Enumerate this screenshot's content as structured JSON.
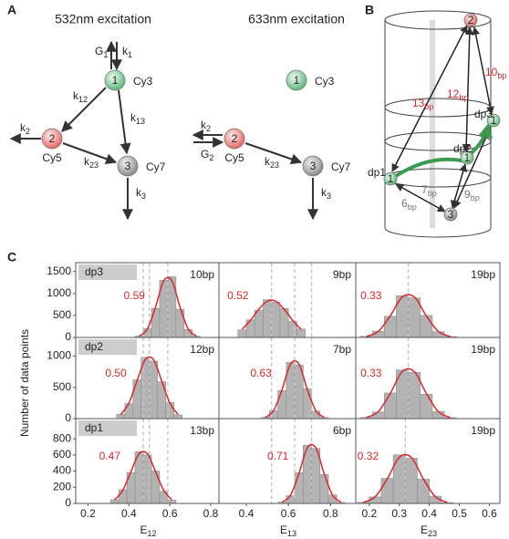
{
  "panel_a": {
    "label": "A",
    "left_title": "532nm excitation",
    "right_title": "633nm excitation",
    "left_nodes": [
      {
        "num": "1",
        "name": "Cy3"
      },
      {
        "num": "2",
        "name": "Cy5"
      },
      {
        "num": "3",
        "name": "Cy7"
      }
    ],
    "right_nodes": [
      {
        "num": "1",
        "name": "Cy3"
      },
      {
        "num": "2",
        "name": "Cy5"
      },
      {
        "num": "3",
        "name": "Cy7"
      }
    ],
    "left_rates": [
      {
        "base": "G",
        "sub": "1"
      },
      {
        "base": "k",
        "sub": "1"
      },
      {
        "base": "k",
        "sub": "12"
      },
      {
        "base": "k",
        "sub": "13"
      },
      {
        "base": "k",
        "sub": "2"
      },
      {
        "base": "k",
        "sub": "23"
      },
      {
        "base": "k",
        "sub": "3"
      }
    ],
    "right_rates": [
      {
        "base": "k",
        "sub": "2"
      },
      {
        "base": "G",
        "sub": "2"
      },
      {
        "base": "k",
        "sub": "23"
      },
      {
        "base": "k",
        "sub": "3"
      }
    ]
  },
  "panel_b": {
    "label": "B",
    "nodes": [
      "2",
      "1",
      "1",
      "1",
      "3"
    ],
    "positions": [
      "dp3",
      "dp2",
      "dp1"
    ],
    "distances": [
      {
        "base": "13",
        "sub": "bp"
      },
      {
        "base": "12",
        "sub": "bp"
      },
      {
        "base": "10",
        "sub": "bp"
      },
      {
        "base": "9",
        "sub": "bp"
      },
      {
        "base": "7",
        "sub": "bp"
      },
      {
        "base": "6",
        "sub": "bp"
      }
    ]
  },
  "panel_c": {
    "label": "C",
    "ylabel": "Number of data points"
  },
  "chart_data": [
    {
      "type": "histogram",
      "row_label": "dp3",
      "distance_label": "10bp",
      "peak_label": "0.59",
      "bins": [
        0.43,
        0.47,
        0.51,
        0.55,
        0.59,
        0.63,
        0.67,
        0.71,
        0.75
      ],
      "values": [
        30,
        200,
        660,
        1300,
        1380,
        640,
        180,
        25
      ],
      "fit": [
        28,
        189,
        686,
        1288,
        1288,
        686,
        189,
        28
      ],
      "guides": [
        0.47,
        0.5,
        0.59
      ],
      "xlim": [
        0.14,
        0.84
      ],
      "ylim": [
        0,
        1700
      ],
      "yticks": [
        0,
        500,
        1000,
        1500
      ]
    },
    {
      "type": "histogram",
      "distance_label": "9bp",
      "peak_label": "0.52",
      "bins": [
        0.36,
        0.4,
        0.44,
        0.48,
        0.52,
        0.56,
        0.6,
        0.64,
        0.68
      ],
      "values": [
        170,
        400,
        620,
        860,
        800,
        660,
        370,
        190
      ],
      "fit": [
        184,
        389,
        642,
        824,
        824,
        642,
        389,
        184
      ],
      "guides": [
        0.52,
        0.63,
        0.71
      ],
      "xlim": [
        0.27,
        0.92
      ],
      "ylim": [
        0,
        1700
      ]
    },
    {
      "type": "histogram",
      "distance_label": "19bp",
      "peak_label": "0.33",
      "bins": [
        0.17,
        0.21,
        0.25,
        0.29,
        0.33,
        0.37,
        0.41,
        0.45,
        0.49
      ],
      "values": [
        25,
        140,
        480,
        950,
        900,
        500,
        130,
        22
      ],
      "fit": [
        20,
        135,
        490,
        920,
        920,
        490,
        135,
        20
      ],
      "guides": [
        0.33
      ],
      "xlim": [
        0.155,
        0.635
      ],
      "ylim": [
        0,
        1700
      ]
    },
    {
      "type": "histogram",
      "row_label": "dp2",
      "distance_label": "12bp",
      "peak_label": "0.50",
      "bins": [
        0.34,
        0.38,
        0.42,
        0.46,
        0.5,
        0.54,
        0.58,
        0.62,
        0.66
      ],
      "values": [
        70,
        240,
        620,
        980,
        920,
        590,
        260,
        60
      ],
      "fit": [
        66,
        249,
        607,
        946,
        946,
        607,
        249,
        66
      ],
      "guides": [
        0.47,
        0.5,
        0.59
      ],
      "xlim": [
        0.14,
        0.84
      ],
      "ylim": [
        0,
        1300
      ],
      "yticks": [
        0,
        500,
        1000
      ]
    },
    {
      "type": "histogram",
      "distance_label": "7bp",
      "peak_label": "0.63",
      "bins": [
        0.47,
        0.51,
        0.55,
        0.59,
        0.63,
        0.67,
        0.71,
        0.75,
        0.79
      ],
      "values": [
        20,
        130,
        450,
        900,
        860,
        480,
        120,
        18
      ],
      "fit": [
        19,
        128,
        466,
        874,
        874,
        466,
        128,
        19
      ],
      "guides": [
        0.52,
        0.63,
        0.71
      ],
      "xlim": [
        0.27,
        0.92
      ],
      "ylim": [
        0,
        1300
      ]
    },
    {
      "type": "histogram",
      "distance_label": "19bp",
      "peak_label": "0.33",
      "bins": [
        0.17,
        0.21,
        0.25,
        0.29,
        0.33,
        0.37,
        0.41,
        0.45,
        0.49
      ],
      "values": [
        18,
        105,
        410,
        780,
        740,
        390,
        115,
        15
      ],
      "fit": [
        16,
        111,
        402,
        754,
        754,
        402,
        111,
        16
      ],
      "guides": [
        0.33
      ],
      "xlim": [
        0.155,
        0.635
      ],
      "ylim": [
        0,
        1300
      ]
    },
    {
      "type": "histogram",
      "row_label": "dp1",
      "distance_label": "13bp",
      "peak_label": "0.47",
      "bins": [
        0.31,
        0.35,
        0.39,
        0.43,
        0.47,
        0.51,
        0.55,
        0.59,
        0.63
      ],
      "values": [
        45,
        170,
        380,
        640,
        600,
        400,
        150,
        40
      ],
      "fit": [
        43,
        162,
        395,
        615,
        615,
        395,
        162,
        43
      ],
      "guides": [
        0.47,
        0.5,
        0.59
      ],
      "xlim": [
        0.14,
        0.84
      ],
      "ylim": [
        0,
        1050
      ],
      "yticks": [
        0,
        200,
        400,
        600,
        800
      ],
      "xticks": [
        0.2,
        0.4,
        0.6,
        0.8
      ],
      "xlabel": {
        "base": "E",
        "sub": "12"
      }
    },
    {
      "type": "histogram",
      "distance_label": "6bp",
      "peak_label": "0.71",
      "bins": [
        0.55,
        0.59,
        0.63,
        0.67,
        0.71,
        0.75,
        0.79,
        0.83,
        0.87
      ],
      "values": [
        14,
        95,
        380,
        720,
        680,
        360,
        105,
        12
      ],
      "fit": [
        15,
        101,
        368,
        690,
        690,
        368,
        101,
        15
      ],
      "guides": [
        0.52,
        0.63,
        0.71
      ],
      "xlim": [
        0.27,
        0.92
      ],
      "ylim": [
        0,
        1050
      ],
      "xticks": [
        0.4,
        0.6,
        0.8
      ],
      "xlabel": {
        "base": "E",
        "sub": "13"
      }
    },
    {
      "type": "histogram",
      "distance_label": "19bp",
      "peak_label": "0.32",
      "bins": [
        0.16,
        0.2,
        0.24,
        0.28,
        0.32,
        0.36,
        0.4,
        0.44,
        0.48
      ],
      "values": [
        14,
        80,
        310,
        600,
        560,
        300,
        90,
        10
      ],
      "fit": [
        12,
        84,
        304,
        570,
        570,
        304,
        84,
        12
      ],
      "guides": [
        0.32
      ],
      "xlim": [
        0.155,
        0.635
      ],
      "ylim": [
        0,
        1050
      ],
      "xticks": [
        0.2,
        0.3,
        0.4,
        0.5,
        0.6
      ],
      "xlabel": {
        "base": "E",
        "sub": "23"
      }
    }
  ]
}
